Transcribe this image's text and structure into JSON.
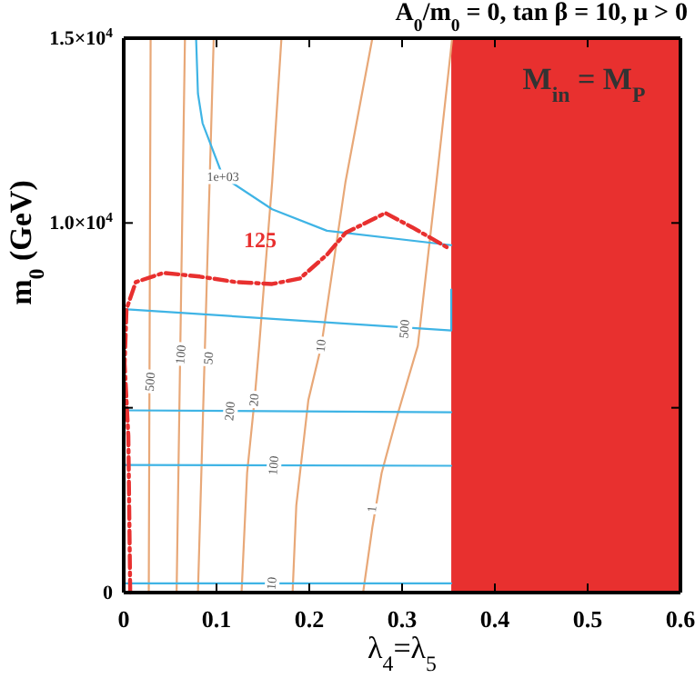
{
  "chart_data": {
    "type": "line",
    "title": "A$_{0}$/m$_{0}$ = 0, tan β = 10, μ > 0",
    "xlabel": "λ$_{4}$=λ$_{5}$",
    "ylabel": "m$_{0}$ (GeV)",
    "xlim": [
      0,
      0.6
    ],
    "xticks": [
      0,
      0.1,
      0.2,
      0.3,
      0.4,
      0.5,
      0.6
    ],
    "ylim": [
      0,
      15000
    ],
    "yticks": [
      0,
      {
        "value": 5000,
        "label": null
      },
      {
        "value": 10000,
        "label": "1.0×10$^{4}$"
      },
      {
        "value": 15000,
        "label": "1.5×10$^{4}$"
      }
    ],
    "grid": false,
    "marker": "none",
    "bands": [
      {
        "axis": "x",
        "from": 0.353,
        "to": 0.6,
        "label": "M$_{in}$ = M$_{P}$",
        "color": "#e8302f"
      }
    ],
    "series": [
      {
        "color": "#e8a878",
        "x": [
          0.027,
          0.029
        ],
        "values": [
          0,
          15000
        ]
      },
      {
        "color": "#e8a878",
        "x": [
          0.057,
          0.066
        ],
        "values": [
          0,
          15000
        ]
      },
      {
        "color": "#e8a878",
        "x": [
          0.08,
          0.097
        ],
        "values": [
          0,
          15000
        ]
      },
      {
        "color": "#e8a878",
        "x": [
          0.127,
          0.133,
          0.141,
          0.146,
          0.16,
          0.17
        ],
        "values": [
          0,
          3240,
          5210,
          6680,
          11110,
          15000
        ]
      },
      {
        "color": "#e8a878",
        "x": [
          0.182,
          0.186,
          0.199,
          0.213,
          0.239,
          0.268
        ],
        "values": [
          0,
          2360,
          5210,
          6680,
          11110,
          15000
        ]
      },
      {
        "color": "#e8a878",
        "x": [
          0.258,
          0.268,
          0.278,
          0.294,
          0.317,
          0.337,
          0.354
        ],
        "values": [
          0,
          1770,
          3240,
          4720,
          6680,
          11110,
          15000
        ]
      },
      {
        "color": "#3fb4e5",
        "x": [
          0,
          0.353
        ],
        "values": [
          250,
          250
        ]
      },
      {
        "color": "#3fb4e5",
        "x": [
          0,
          0.353
        ],
        "values": [
          3450,
          3430
        ]
      },
      {
        "color": "#3fb4e5",
        "x": [
          0,
          0.353
        ],
        "values": [
          4930,
          4880
        ]
      },
      {
        "color": "#3fb4e5",
        "x": [
          0,
          0.353,
          0.353
        ],
        "values": [
          7670,
          7090,
          8200
        ]
      },
      {
        "color": "#3fb4e5",
        "x": [
          0.078,
          0.08,
          0.085,
          0.107,
          0.16,
          0.219,
          0.353
        ],
        "values": [
          15000,
          13500,
          12700,
          11250,
          10370,
          9790,
          9400
        ]
      },
      {
        "color": "#e8302f",
        "line_style": "dashed",
        "x": [
          0.007,
          0.005,
          0.001,
          0.003,
          0.013,
          0.043,
          0.082,
          0.121,
          0.16,
          0.19,
          0.219,
          0.239,
          0.282,
          0.311,
          0.352
        ],
        "values": [
          0,
          4230,
          6190,
          7670,
          8400,
          8650,
          8550,
          8400,
          8350,
          8500,
          9140,
          9730,
          10270,
          9880,
          9290
        ]
      }
    ],
    "annotations": [
      {
        "text": "125",
        "x": 0.147,
        "y": 9140
      },
      {
        "text": "10",
        "x": 0.16,
        "y": 250
      },
      {
        "text": "100",
        "x": 0.162,
        "y": 3440
      },
      {
        "text": "200",
        "x": 0.115,
        "y": 4910
      },
      {
        "text": "500",
        "x": 0.303,
        "y": 7130
      },
      {
        "text": "1e+03",
        "x": 0.107,
        "y": 11250
      },
      {
        "text": "500",
        "x": 0.029,
        "y": 5700
      },
      {
        "text": "100",
        "x": 0.062,
        "y": 6440
      },
      {
        "text": "50",
        "x": 0.092,
        "y": 6340
      },
      {
        "text": "20",
        "x": 0.141,
        "y": 5210
      },
      {
        "text": "10",
        "x": 0.213,
        "y": 6680
      },
      {
        "text": "1",
        "x": 0.268,
        "y": 2260
      }
    ]
  }
}
